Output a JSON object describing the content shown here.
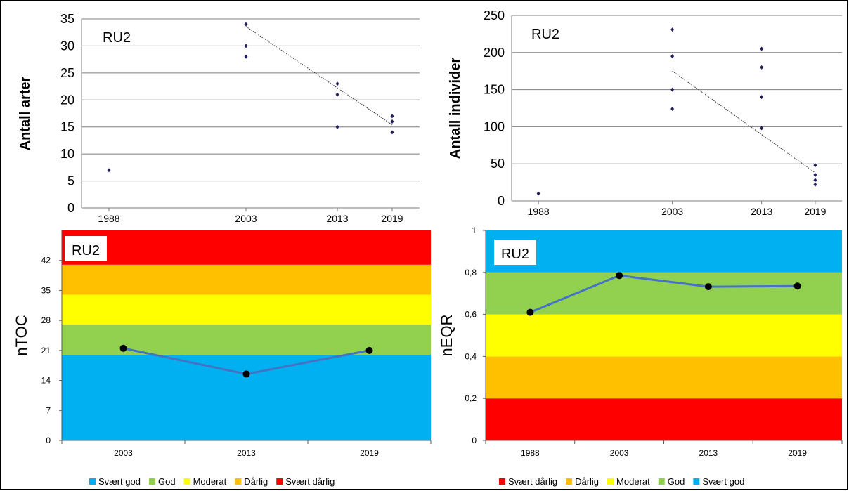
{
  "chart_data": [
    {
      "id": "species",
      "type": "scatter",
      "panel_label": "RU2",
      "ylabel": "Antall arter",
      "xlabel": "",
      "ylim": [
        0,
        35
      ],
      "yticks": [
        0,
        5,
        10,
        15,
        20,
        25,
        30,
        35
      ],
      "xlim": [
        1985,
        2022
      ],
      "xticks": [
        1988,
        2003,
        2013,
        2019
      ],
      "grid": true,
      "series": [
        {
          "x": [
            1988,
            2003,
            2003,
            2003,
            2013,
            2013,
            2013,
            2019,
            2019,
            2019
          ],
          "y": [
            7,
            34,
            30,
            28,
            23,
            21,
            15,
            17,
            16,
            14
          ]
        }
      ],
      "trendline": {
        "x": [
          2003,
          2019
        ],
        "y": [
          33.6,
          15.4
        ]
      }
    },
    {
      "id": "individuals",
      "type": "scatter",
      "panel_label": "RU2",
      "ylabel": "Antall individer",
      "xlabel": "",
      "ylim": [
        0,
        250
      ],
      "yticks": [
        0,
        50,
        100,
        150,
        200,
        250
      ],
      "xlim": [
        1985,
        2022
      ],
      "xticks": [
        1988,
        2003,
        2013,
        2019
      ],
      "grid": true,
      "series": [
        {
          "x": [
            1988,
            2003,
            2003,
            2003,
            2003,
            2013,
            2013,
            2013,
            2013,
            2019,
            2019,
            2019,
            2019
          ],
          "y": [
            10,
            231,
            195,
            150,
            124,
            205,
            180,
            140,
            98,
            48,
            35,
            28,
            22
          ]
        }
      ],
      "trendline": {
        "x": [
          2003,
          2019
        ],
        "y": [
          175,
          38
        ]
      }
    },
    {
      "id": "ntoc",
      "type": "line",
      "panel_label": "RU2",
      "ylabel": "nTOC",
      "xlabel": "",
      "ylim": [
        0,
        49
      ],
      "yticks": [
        0,
        7,
        14,
        21,
        28,
        35,
        42
      ],
      "categories": [
        "2003",
        "2013",
        "2019"
      ],
      "values": [
        21.5,
        15.5,
        21
      ],
      "bands": [
        {
          "name": "Svært god",
          "from": 0,
          "to": 20,
          "color": "#00B0F0"
        },
        {
          "name": "God",
          "from": 20,
          "to": 27,
          "color": "#92D050"
        },
        {
          "name": "Moderat",
          "from": 27,
          "to": 34,
          "color": "#FFFF00"
        },
        {
          "name": "Dårlig",
          "from": 34,
          "to": 41,
          "color": "#FFC000"
        },
        {
          "name": "Svært dårlig",
          "from": 41,
          "to": 49,
          "color": "#FF0000"
        }
      ],
      "legend": [
        "Svært god",
        "God",
        "Moderat",
        "Dårlig",
        "Svært dårlig"
      ],
      "legend_position": "bottom"
    },
    {
      "id": "neqr",
      "type": "line",
      "panel_label": "RU2",
      "ylabel": "nEQR",
      "xlabel": "",
      "ylim": [
        0,
        1
      ],
      "yticks": [
        "0",
        "0,2",
        "0,4",
        "0,6",
        "0,8",
        "1"
      ],
      "categories": [
        "1988",
        "2003",
        "2013",
        "2019"
      ],
      "values": [
        0.61,
        0.785,
        0.732,
        0.735
      ],
      "bands": [
        {
          "name": "Svært dårlig",
          "from": 0,
          "to": 0.2,
          "color": "#FF0000"
        },
        {
          "name": "Dårlig",
          "from": 0.2,
          "to": 0.4,
          "color": "#FFC000"
        },
        {
          "name": "Moderat",
          "from": 0.4,
          "to": 0.6,
          "color": "#FFFF00"
        },
        {
          "name": "God",
          "from": 0.6,
          "to": 0.8,
          "color": "#92D050"
        },
        {
          "name": "Svært god",
          "from": 0.8,
          "to": 1,
          "color": "#00B0F0"
        }
      ],
      "legend": [
        "Svært dårlig",
        "Dårlig",
        "Moderat",
        "God",
        "Svært god"
      ],
      "legend_position": "bottom"
    }
  ]
}
